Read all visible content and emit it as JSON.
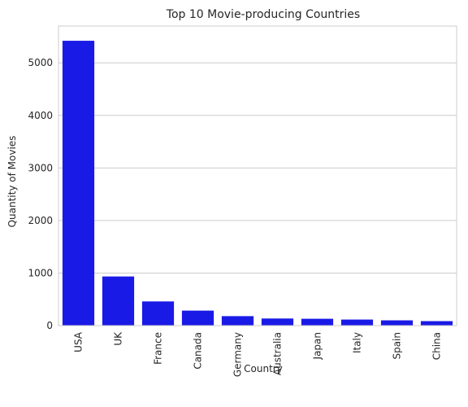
{
  "chart_data": {
    "type": "bar",
    "title": "Top 10 Movie-producing Countries",
    "xlabel": "Country",
    "ylabel": "Quantity of Movies",
    "categories": [
      "USA",
      "UK",
      "France",
      "Canada",
      "Germany",
      "Australia",
      "Japan",
      "Italy",
      "Spain",
      "China"
    ],
    "values": [
      5420,
      935,
      460,
      285,
      180,
      135,
      130,
      115,
      100,
      85
    ],
    "yticks": [
      0,
      1000,
      2000,
      3000,
      4000,
      5000
    ],
    "ylim": [
      0,
      5700
    ],
    "grid": "y-major",
    "legend": "none",
    "bar_color": "#1a1ae6"
  }
}
